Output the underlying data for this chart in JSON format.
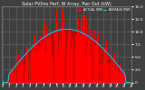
{
  "title": "Solar PV/Inv Perf, W Array, Pwr Out (kW)",
  "bg_color": "#404040",
  "plot_bg": "#404040",
  "bar_color": "#ff0000",
  "fill_color": "#cc0000",
  "avg_color": "#00ccff",
  "ylim": [
    0,
    15.0
  ],
  "num_bars": 144,
  "figsize": [
    1.6,
    1.0
  ],
  "dpi": 100,
  "legend_actual": "ACTUAL PWR",
  "legend_avg": "AVERAGE PWR",
  "yticks": [
    0,
    2.5,
    5.0,
    7.5,
    10.0,
    12.5,
    15.0
  ],
  "grid_color": "#ffffff",
  "text_color": "#ffffff",
  "title_color": "#ffffff",
  "peak": 14.5,
  "avg_peak": 10.5
}
